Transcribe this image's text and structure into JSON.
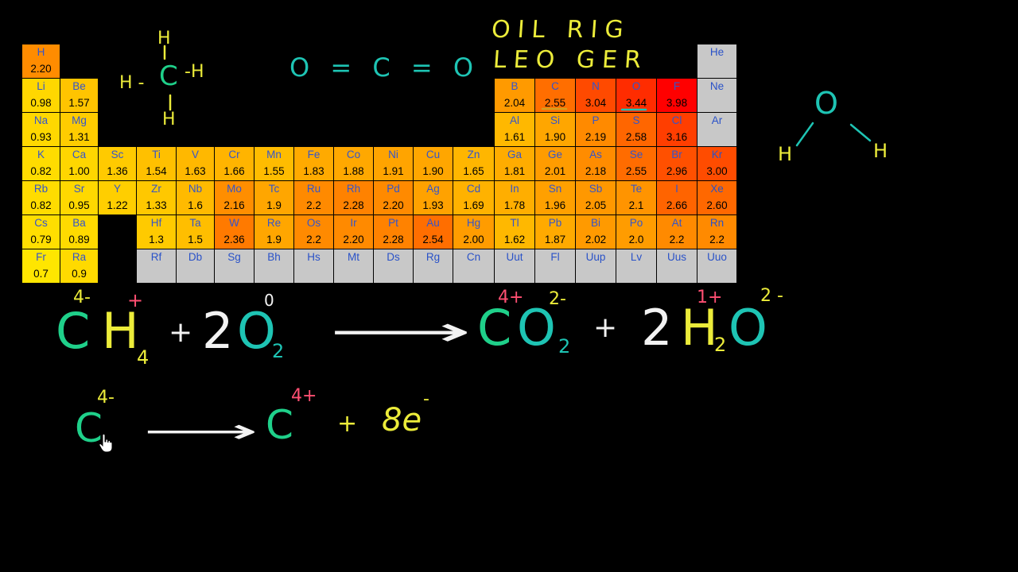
{
  "colors": {
    "background": "#000000",
    "green": "#1fd08a",
    "yellow": "#ecec3a",
    "white": "#f2f2f2",
    "pink": "#ff4f72",
    "teal": "#1ec4b4",
    "noble_text": "#2a52c8",
    "en_text": "#000000"
  },
  "periodic_table": {
    "cells": [
      {
        "symbol": "H",
        "en": "2.20",
        "row": 1,
        "col": 1,
        "color": "#ff8c00",
        "symcolor": "#3355cc"
      },
      {
        "symbol": "He",
        "en": "",
        "row": 1,
        "col": 18,
        "color": "#c8c8c8",
        "symcolor": "#2a52c8"
      },
      {
        "symbol": "Li",
        "en": "0.98",
        "row": 2,
        "col": 1,
        "color": "#ffd700",
        "symcolor": "#3355cc"
      },
      {
        "symbol": "Be",
        "en": "1.57",
        "row": 2,
        "col": 2,
        "color": "#ffc400",
        "symcolor": "#3355cc"
      },
      {
        "symbol": "B",
        "en": "2.04",
        "row": 2,
        "col": 13,
        "color": "#ff9a00",
        "symcolor": "#3355cc"
      },
      {
        "symbol": "C",
        "en": "2.55",
        "row": 2,
        "col": 14,
        "color": "#ff6e00",
        "symcolor": "#3355cc"
      },
      {
        "symbol": "N",
        "en": "3.04",
        "row": 2,
        "col": 15,
        "color": "#ff4a00",
        "symcolor": "#3355cc"
      },
      {
        "symbol": "O",
        "en": "3.44",
        "row": 2,
        "col": 16,
        "color": "#ff2c00",
        "symcolor": "#3355cc"
      },
      {
        "symbol": "F",
        "en": "3.98",
        "row": 2,
        "col": 17,
        "color": "#ff0000",
        "symcolor": "#3355cc"
      },
      {
        "symbol": "Ne",
        "en": "",
        "row": 2,
        "col": 18,
        "color": "#c8c8c8",
        "symcolor": "#2a52c8"
      },
      {
        "symbol": "Na",
        "en": "0.93",
        "row": 3,
        "col": 1,
        "color": "#ffd800",
        "symcolor": "#3355cc"
      },
      {
        "symbol": "Mg",
        "en": "1.31",
        "row": 3,
        "col": 2,
        "color": "#ffcc00",
        "symcolor": "#3355cc"
      },
      {
        "symbol": "Al",
        "en": "1.61",
        "row": 3,
        "col": 13,
        "color": "#ffb800",
        "symcolor": "#3355cc"
      },
      {
        "symbol": "Si",
        "en": "1.90",
        "row": 3,
        "col": 14,
        "color": "#ffa600",
        "symcolor": "#3355cc"
      },
      {
        "symbol": "P",
        "en": "2.19",
        "row": 3,
        "col": 15,
        "color": "#ff8a00",
        "symcolor": "#3355cc"
      },
      {
        "symbol": "S",
        "en": "2.58",
        "row": 3,
        "col": 16,
        "color": "#ff6600",
        "symcolor": "#3355cc"
      },
      {
        "symbol": "Cl",
        "en": "3.16",
        "row": 3,
        "col": 17,
        "color": "#ff3e00",
        "symcolor": "#3355cc"
      },
      {
        "symbol": "Ar",
        "en": "",
        "row": 3,
        "col": 18,
        "color": "#c8c8c8",
        "symcolor": "#2a52c8"
      },
      {
        "symbol": "K",
        "en": "0.82",
        "row": 4,
        "col": 1,
        "color": "#ffdc00",
        "symcolor": "#3355cc"
      },
      {
        "symbol": "Ca",
        "en": "1.00",
        "row": 4,
        "col": 2,
        "color": "#ffd600",
        "symcolor": "#3355cc"
      },
      {
        "symbol": "Sc",
        "en": "1.36",
        "row": 4,
        "col": 3,
        "color": "#ffca00",
        "symcolor": "#3355cc"
      },
      {
        "symbol": "Ti",
        "en": "1.54",
        "row": 4,
        "col": 4,
        "color": "#ffc000",
        "symcolor": "#3355cc"
      },
      {
        "symbol": "V",
        "en": "1.63",
        "row": 4,
        "col": 5,
        "color": "#ffb800",
        "symcolor": "#3355cc"
      },
      {
        "symbol": "Cr",
        "en": "1.66",
        "row": 4,
        "col": 6,
        "color": "#ffb400",
        "symcolor": "#3355cc"
      },
      {
        "symbol": "Mn",
        "en": "1.55",
        "row": 4,
        "col": 7,
        "color": "#ffbc00",
        "symcolor": "#3355cc"
      },
      {
        "symbol": "Fe",
        "en": "1.83",
        "row": 4,
        "col": 8,
        "color": "#ffaa00",
        "symcolor": "#3355cc"
      },
      {
        "symbol": "Co",
        "en": "1.88",
        "row": 4,
        "col": 9,
        "color": "#ffa800",
        "symcolor": "#3355cc"
      },
      {
        "symbol": "Ni",
        "en": "1.91",
        "row": 4,
        "col": 10,
        "color": "#ffa400",
        "symcolor": "#3355cc"
      },
      {
        "symbol": "Cu",
        "en": "1.90",
        "row": 4,
        "col": 11,
        "color": "#ffa600",
        "symcolor": "#3355cc"
      },
      {
        "symbol": "Zn",
        "en": "1.65",
        "row": 4,
        "col": 12,
        "color": "#ffb600",
        "symcolor": "#3355cc"
      },
      {
        "symbol": "Ga",
        "en": "1.81",
        "row": 4,
        "col": 13,
        "color": "#ffac00",
        "symcolor": "#3355cc"
      },
      {
        "symbol": "Ge",
        "en": "2.01",
        "row": 4,
        "col": 14,
        "color": "#ff9c00",
        "symcolor": "#3355cc"
      },
      {
        "symbol": "As",
        "en": "2.18",
        "row": 4,
        "col": 15,
        "color": "#ff8c00",
        "symcolor": "#3355cc"
      },
      {
        "symbol": "Se",
        "en": "2.55",
        "row": 4,
        "col": 16,
        "color": "#ff6c00",
        "symcolor": "#3355cc"
      },
      {
        "symbol": "Br",
        "en": "2.96",
        "row": 4,
        "col": 17,
        "color": "#ff5000",
        "symcolor": "#3355cc"
      },
      {
        "symbol": "Kr",
        "en": "3.00",
        "row": 4,
        "col": 18,
        "color": "#ff4c00",
        "symcolor": "#2a52c8"
      },
      {
        "symbol": "Rb",
        "en": "0.82",
        "row": 5,
        "col": 1,
        "color": "#ffdc00",
        "symcolor": "#3355cc"
      },
      {
        "symbol": "Sr",
        "en": "0.95",
        "row": 5,
        "col": 2,
        "color": "#ffd800",
        "symcolor": "#3355cc"
      },
      {
        "symbol": "Y",
        "en": "1.22",
        "row": 5,
        "col": 3,
        "color": "#ffce00",
        "symcolor": "#3355cc"
      },
      {
        "symbol": "Zr",
        "en": "1.33",
        "row": 5,
        "col": 4,
        "color": "#ffc800",
        "symcolor": "#3355cc"
      },
      {
        "symbol": "Nb",
        "en": "1.6",
        "row": 5,
        "col": 5,
        "color": "#ffba00",
        "symcolor": "#3355cc"
      },
      {
        "symbol": "Mo",
        "en": "2.16",
        "row": 5,
        "col": 6,
        "color": "#ff8e00",
        "symcolor": "#3355cc"
      },
      {
        "symbol": "Tc",
        "en": "1.9",
        "row": 5,
        "col": 7,
        "color": "#ffa600",
        "symcolor": "#3355cc"
      },
      {
        "symbol": "Ru",
        "en": "2.2",
        "row": 5,
        "col": 8,
        "color": "#ff8a00",
        "symcolor": "#3355cc"
      },
      {
        "symbol": "Rh",
        "en": "2.28",
        "row": 5,
        "col": 9,
        "color": "#ff8200",
        "symcolor": "#3355cc"
      },
      {
        "symbol": "Pd",
        "en": "2.20",
        "row": 5,
        "col": 10,
        "color": "#ff8a00",
        "symcolor": "#3355cc"
      },
      {
        "symbol": "Ag",
        "en": "1.93",
        "row": 5,
        "col": 11,
        "color": "#ffa200",
        "symcolor": "#3355cc"
      },
      {
        "symbol": "Cd",
        "en": "1.69",
        "row": 5,
        "col": 12,
        "color": "#ffb200",
        "symcolor": "#3355cc"
      },
      {
        "symbol": "In",
        "en": "1.78",
        "row": 5,
        "col": 13,
        "color": "#ffae00",
        "symcolor": "#3355cc"
      },
      {
        "symbol": "Sn",
        "en": "1.96",
        "row": 5,
        "col": 14,
        "color": "#ffa000",
        "symcolor": "#3355cc"
      },
      {
        "symbol": "Sb",
        "en": "2.05",
        "row": 5,
        "col": 15,
        "color": "#ff9800",
        "symcolor": "#3355cc"
      },
      {
        "symbol": "Te",
        "en": "2.1",
        "row": 5,
        "col": 16,
        "color": "#ff9400",
        "symcolor": "#3355cc"
      },
      {
        "symbol": "I",
        "en": "2.66",
        "row": 5,
        "col": 17,
        "color": "#ff6400",
        "symcolor": "#3355cc"
      },
      {
        "symbol": "Xe",
        "en": "2.60",
        "row": 5,
        "col": 18,
        "color": "#ff6800",
        "symcolor": "#2a52c8"
      },
      {
        "symbol": "Cs",
        "en": "0.79",
        "row": 6,
        "col": 1,
        "color": "#ffde00",
        "symcolor": "#3355cc"
      },
      {
        "symbol": "Ba",
        "en": "0.89",
        "row": 6,
        "col": 2,
        "color": "#ffda00",
        "symcolor": "#3355cc"
      },
      {
        "symbol": "Hf",
        "en": "1.3",
        "row": 6,
        "col": 4,
        "color": "#ffca00",
        "symcolor": "#3355cc"
      },
      {
        "symbol": "Ta",
        "en": "1.5",
        "row": 6,
        "col": 5,
        "color": "#ffbe00",
        "symcolor": "#3355cc"
      },
      {
        "symbol": "W",
        "en": "2.36",
        "row": 6,
        "col": 6,
        "color": "#ff7a00",
        "symcolor": "#3355cc"
      },
      {
        "symbol": "Re",
        "en": "1.9",
        "row": 6,
        "col": 7,
        "color": "#ffa600",
        "symcolor": "#3355cc"
      },
      {
        "symbol": "Os",
        "en": "2.2",
        "row": 6,
        "col": 8,
        "color": "#ff8a00",
        "symcolor": "#3355cc"
      },
      {
        "symbol": "Ir",
        "en": "2.20",
        "row": 6,
        "col": 9,
        "color": "#ff8a00",
        "symcolor": "#3355cc"
      },
      {
        "symbol": "Pt",
        "en": "2.28",
        "row": 6,
        "col": 10,
        "color": "#ff8200",
        "symcolor": "#3355cc"
      },
      {
        "symbol": "Au",
        "en": "2.54",
        "row": 6,
        "col": 11,
        "color": "#ff6e00",
        "symcolor": "#3355cc"
      },
      {
        "symbol": "Hg",
        "en": "2.00",
        "row": 6,
        "col": 12,
        "color": "#ff9c00",
        "symcolor": "#3355cc"
      },
      {
        "symbol": "Tl",
        "en": "1.62",
        "row": 6,
        "col": 13,
        "color": "#ffb800",
        "symcolor": "#3355cc"
      },
      {
        "symbol": "Pb",
        "en": "1.87",
        "row": 6,
        "col": 14,
        "color": "#ffaa00",
        "symcolor": "#3355cc"
      },
      {
        "symbol": "Bi",
        "en": "2.02",
        "row": 6,
        "col": 15,
        "color": "#ff9a00",
        "symcolor": "#3355cc"
      },
      {
        "symbol": "Po",
        "en": "2.0",
        "row": 6,
        "col": 16,
        "color": "#ff9c00",
        "symcolor": "#3355cc"
      },
      {
        "symbol": "At",
        "en": "2.2",
        "row": 6,
        "col": 17,
        "color": "#ff8a00",
        "symcolor": "#3355cc"
      },
      {
        "symbol": "Rn",
        "en": "2.2",
        "row": 6,
        "col": 18,
        "color": "#ff8a00",
        "symcolor": "#2a52c8"
      },
      {
        "symbol": "Fr",
        "en": "0.7",
        "row": 7,
        "col": 1,
        "color": "#ffe600",
        "symcolor": "#3355cc"
      },
      {
        "symbol": "Ra",
        "en": "0.9",
        "row": 7,
        "col": 2,
        "color": "#ffda00",
        "symcolor": "#3355cc"
      },
      {
        "symbol": "Rf",
        "en": "",
        "row": 7,
        "col": 4,
        "color": "#c8c8c8",
        "symcolor": "#2a52c8"
      },
      {
        "symbol": "Db",
        "en": "",
        "row": 7,
        "col": 5,
        "color": "#c8c8c8",
        "symcolor": "#2a52c8"
      },
      {
        "symbol": "Sg",
        "en": "",
        "row": 7,
        "col": 6,
        "color": "#c8c8c8",
        "symcolor": "#2a52c8"
      },
      {
        "symbol": "Bh",
        "en": "",
        "row": 7,
        "col": 7,
        "color": "#c8c8c8",
        "symcolor": "#2a52c8"
      },
      {
        "symbol": "Hs",
        "en": "",
        "row": 7,
        "col": 8,
        "color": "#c8c8c8",
        "symcolor": "#2a52c8"
      },
      {
        "symbol": "Mt",
        "en": "",
        "row": 7,
        "col": 9,
        "color": "#c8c8c8",
        "symcolor": "#2a52c8"
      },
      {
        "symbol": "Ds",
        "en": "",
        "row": 7,
        "col": 10,
        "color": "#c8c8c8",
        "symcolor": "#2a52c8"
      },
      {
        "symbol": "Rg",
        "en": "",
        "row": 7,
        "col": 11,
        "color": "#c8c8c8",
        "symcolor": "#2a52c8"
      },
      {
        "symbol": "Cn",
        "en": "",
        "row": 7,
        "col": 12,
        "color": "#c8c8c8",
        "symcolor": "#2a52c8"
      },
      {
        "symbol": "Uut",
        "en": "",
        "row": 7,
        "col": 13,
        "color": "#c8c8c8",
        "symcolor": "#2a52c8"
      },
      {
        "symbol": "Fl",
        "en": "",
        "row": 7,
        "col": 14,
        "color": "#c8c8c8",
        "symcolor": "#2a52c8"
      },
      {
        "symbol": "Uup",
        "en": "",
        "row": 7,
        "col": 15,
        "color": "#c8c8c8",
        "symcolor": "#2a52c8"
      },
      {
        "symbol": "Lv",
        "en": "",
        "row": 7,
        "col": 16,
        "color": "#c8c8c8",
        "symcolor": "#2a52c8"
      },
      {
        "symbol": "Uus",
        "en": "",
        "row": 7,
        "col": 17,
        "color": "#c8c8c8",
        "symcolor": "#2a52c8"
      },
      {
        "symbol": "Uuo",
        "en": "",
        "row": 7,
        "col": 18,
        "color": "#c8c8c8",
        "symcolor": "#2a52c8"
      }
    ]
  },
  "notes": {
    "mnemonic_1": "OIL RIG",
    "mnemonic_2": "LEO GER",
    "co2_structure": "O = C = O",
    "methane": {
      "top_h": "H",
      "left_h": "H -",
      "carbon": "C",
      "right_h": "-H",
      "bottom_h": "H"
    },
    "water": {
      "oxygen": "O",
      "left_h": "H",
      "right_h": "H"
    }
  },
  "equation": {
    "reactant_1": {
      "element1": "C",
      "element1_charge": "4-",
      "element2": "H",
      "element2_charge": "+",
      "element2_sub": "4"
    },
    "plus_1": "+",
    "reactant_2": {
      "coef": "2",
      "element": "O",
      "charge": "0",
      "sub": "2"
    },
    "arrow": "⟶",
    "product_1": {
      "element1": "C",
      "element1_charge": "4+",
      "element2": "O",
      "element2_charge": "2-",
      "element2_sub": "2"
    },
    "plus_2": "+",
    "product_2": {
      "coef": "2",
      "element1": "H",
      "element1_charge": "1+",
      "element1_sub": "2",
      "element2": "O",
      "element2_charge": "2 -"
    }
  },
  "half_reaction": {
    "reactant": "C",
    "reactant_charge": "4-",
    "arrow": "⟶",
    "product": "C",
    "product_charge": "4+",
    "plus": "+",
    "electrons": "8e",
    "electron_charge": "-"
  },
  "cursor": "hand-pointer-icon"
}
